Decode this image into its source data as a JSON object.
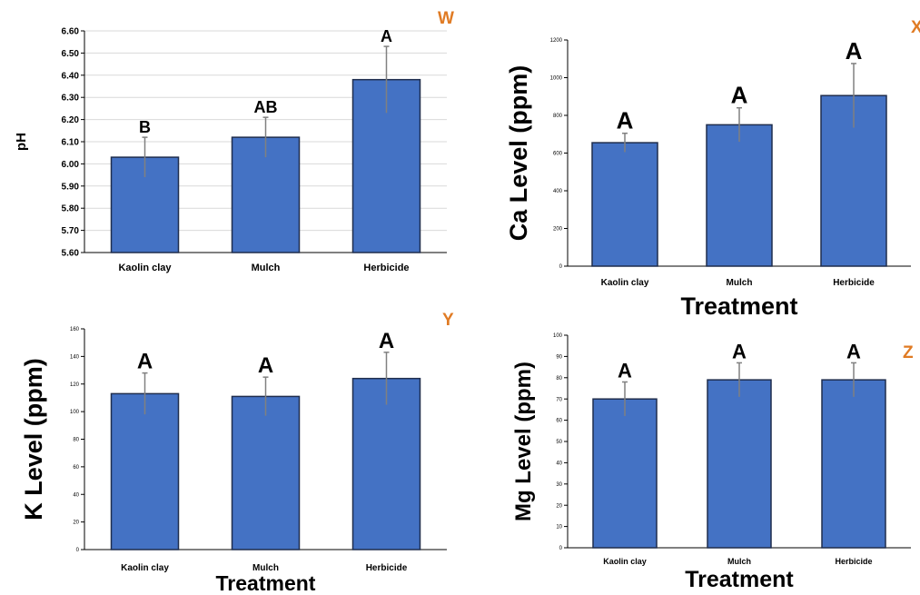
{
  "chart_data": [
    {
      "type": "bar",
      "panel_label": "W",
      "categories": [
        "Kaolin clay",
        "Mulch",
        "Herbicide"
      ],
      "values": [
        6.03,
        6.12,
        6.38
      ],
      "errors": [
        0.09,
        0.09,
        0.15
      ],
      "letters": [
        "B",
        "AB",
        "A"
      ],
      "title": "",
      "xlabel": "",
      "ylabel": "pH",
      "ylim": [
        5.6,
        6.6
      ],
      "yticks": [
        "5.60",
        "5.70",
        "5.80",
        "5.90",
        "6.00",
        "6.10",
        "6.20",
        "6.30",
        "6.40",
        "6.50",
        "6.60"
      ],
      "grid": true
    },
    {
      "type": "bar",
      "panel_label": "X",
      "categories": [
        "Kaolin clay",
        "Mulch",
        "Herbicide"
      ],
      "values": [
        655,
        750,
        905
      ],
      "errors": [
        50,
        90,
        170
      ],
      "letters": [
        "A",
        "A",
        "A"
      ],
      "title": "",
      "xlabel": "Treatment",
      "ylabel": "Ca Level (ppm)",
      "ylim": [
        0,
        1200
      ],
      "yticks": [
        "0",
        "200",
        "400",
        "600",
        "800",
        "1000",
        "1200"
      ],
      "grid": false
    },
    {
      "type": "bar",
      "panel_label": "Y",
      "categories": [
        "Kaolin clay",
        "Mulch",
        "Herbicide"
      ],
      "values": [
        113,
        111,
        124
      ],
      "errors": [
        15,
        14,
        19
      ],
      "letters": [
        "A",
        "A",
        "A"
      ],
      "title": "",
      "xlabel": "Treatment",
      "ylabel": "K Level (ppm)",
      "ylim": [
        0,
        160
      ],
      "yticks": [
        "0",
        "20",
        "40",
        "60",
        "80",
        "100",
        "120",
        "140",
        "160"
      ],
      "grid": false
    },
    {
      "type": "bar",
      "panel_label": "Z",
      "categories": [
        "Kaolin clay",
        "Mulch",
        "Herbicide"
      ],
      "values": [
        70,
        79,
        79
      ],
      "errors": [
        8,
        8,
        8
      ],
      "letters": [
        "A",
        "A",
        "A"
      ],
      "title": "",
      "xlabel": "Treatment",
      "ylabel": "Mg Level (ppm)",
      "ylim": [
        0,
        100
      ],
      "yticks": [
        "0",
        "10",
        "20",
        "30",
        "40",
        "50",
        "60",
        "70",
        "80",
        "90",
        "100"
      ],
      "grid": false
    }
  ],
  "colors": {
    "bar_fill": "#4472C4",
    "bar_stroke": "#1F2D4D",
    "panel_label": "#E07B24",
    "axis": "#000000",
    "grid": "#D9D9D9",
    "error_bar": "#808080"
  }
}
